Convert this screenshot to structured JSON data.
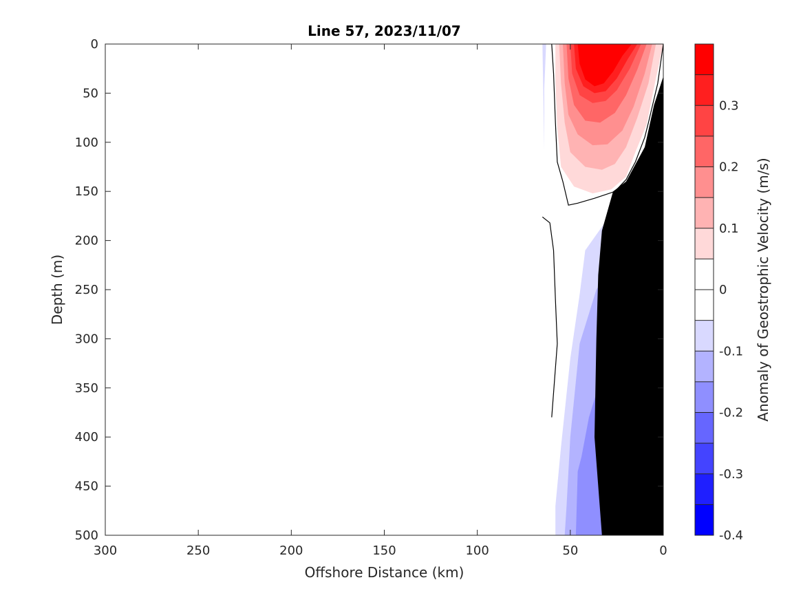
{
  "chart_data": {
    "type": "contour",
    "title": "Line 57, 2023/11/07",
    "xlabel": "Offshore Distance (km)",
    "ylabel": "Depth (m)",
    "xlim": [
      300,
      0
    ],
    "ylim": [
      500,
      0
    ],
    "x_reversed": true,
    "y_reversed": true,
    "x_ticks": [
      300,
      250,
      200,
      150,
      100,
      50,
      0
    ],
    "y_ticks": [
      0,
      50,
      100,
      150,
      200,
      250,
      300,
      350,
      400,
      450,
      500
    ],
    "grid": false,
    "colorbar": {
      "label": "Anomaly of Geostrophic Velocity (m/s)",
      "range": [
        -0.4,
        0.4
      ],
      "ticks": [
        -0.4,
        -0.3,
        -0.2,
        -0.1,
        0,
        0.1,
        0.2,
        0.3
      ],
      "levels": [
        {
          "from": -0.4,
          "to": -0.35,
          "color": "#0000ff"
        },
        {
          "from": -0.35,
          "to": -0.3,
          "color": "#1f1fff"
        },
        {
          "from": -0.3,
          "to": -0.25,
          "color": "#4444ff"
        },
        {
          "from": -0.25,
          "to": -0.2,
          "color": "#6666ff"
        },
        {
          "from": -0.2,
          "to": -0.15,
          "color": "#8f8fff"
        },
        {
          "from": -0.15,
          "to": -0.1,
          "color": "#b3b3ff"
        },
        {
          "from": -0.1,
          "to": -0.05,
          "color": "#d9d9ff"
        },
        {
          "from": -0.05,
          "to": 0.0,
          "color": "#ffffff"
        },
        {
          "from": 0.0,
          "to": 0.05,
          "color": "#ffffff"
        },
        {
          "from": 0.05,
          "to": 0.1,
          "color": "#ffd9d9"
        },
        {
          "from": 0.1,
          "to": 0.15,
          "color": "#ffb3b3"
        },
        {
          "from": 0.15,
          "to": 0.2,
          "color": "#ff8f8f"
        },
        {
          "from": 0.2,
          "to": 0.25,
          "color": "#ff6666"
        },
        {
          "from": 0.25,
          "to": 0.3,
          "color": "#ff4444"
        },
        {
          "from": 0.3,
          "to": 0.35,
          "color": "#ff1f1f"
        },
        {
          "from": 0.35,
          "to": 0.4,
          "color": "#ff0000"
        }
      ]
    },
    "filled_regions": [
      {
        "value": -0.075,
        "color": "#d9d9ff",
        "points": [
          [
            30,
            178
          ],
          [
            12,
            190
          ],
          [
            3,
            250
          ],
          [
            0,
            470
          ],
          [
            0,
            500
          ],
          [
            58,
            500
          ],
          [
            58,
            470
          ],
          [
            55,
            410
          ],
          [
            50,
            320
          ],
          [
            45,
            255
          ],
          [
            42,
            210
          ]
        ]
      },
      {
        "value": -0.125,
        "color": "#b3b3ff",
        "points": [
          [
            28,
            228
          ],
          [
            15,
            245
          ],
          [
            10,
            330
          ],
          [
            3,
            500
          ],
          [
            53,
            500
          ],
          [
            52,
            470
          ],
          [
            50,
            400
          ],
          [
            45,
            305
          ],
          [
            36,
            250
          ]
        ]
      },
      {
        "value": -0.175,
        "color": "#8f8fff",
        "points": [
          [
            34,
            343
          ],
          [
            20,
            380
          ],
          [
            16,
            500
          ],
          [
            47,
            500
          ],
          [
            46,
            435
          ],
          [
            44,
            420
          ],
          [
            40,
            380
          ]
        ]
      },
      {
        "value": 0.075,
        "color": "#ffd9d9",
        "points": [
          [
            58,
            0
          ],
          [
            58,
            40
          ],
          [
            57,
            85
          ],
          [
            55,
            125
          ],
          [
            48,
            145
          ],
          [
            38,
            152
          ],
          [
            28,
            148
          ],
          [
            20,
            135
          ],
          [
            15,
            110
          ],
          [
            9,
            82
          ],
          [
            4,
            35
          ],
          [
            0,
            0
          ]
        ]
      },
      {
        "value": 0.125,
        "color": "#ffb3b3",
        "points": [
          [
            56,
            0
          ],
          [
            55,
            40
          ],
          [
            53,
            80
          ],
          [
            50,
            110
          ],
          [
            42,
            125
          ],
          [
            33,
            128
          ],
          [
            26,
            122
          ],
          [
            20,
            105
          ],
          [
            14,
            75
          ],
          [
            8,
            40
          ],
          [
            4,
            0
          ]
        ]
      },
      {
        "value": 0.175,
        "color": "#ff8f8f",
        "points": [
          [
            54,
            0
          ],
          [
            53,
            40
          ],
          [
            51,
            72
          ],
          [
            46,
            92
          ],
          [
            38,
            103
          ],
          [
            30,
            102
          ],
          [
            22,
            88
          ],
          [
            16,
            64
          ],
          [
            10,
            30
          ],
          [
            6,
            0
          ]
        ]
      },
      {
        "value": 0.225,
        "color": "#ff6666",
        "points": [
          [
            52,
            0
          ],
          [
            51,
            35
          ],
          [
            48,
            62
          ],
          [
            42,
            78
          ],
          [
            34,
            80
          ],
          [
            26,
            70
          ],
          [
            20,
            52
          ],
          [
            14,
            26
          ],
          [
            9,
            0
          ]
        ]
      },
      {
        "value": 0.275,
        "color": "#ff4444",
        "points": [
          [
            50,
            0
          ],
          [
            49,
            30
          ],
          [
            45,
            52
          ],
          [
            38,
            60
          ],
          [
            31,
            58
          ],
          [
            25,
            47
          ],
          [
            18,
            25
          ],
          [
            12,
            0
          ]
        ]
      },
      {
        "value": 0.325,
        "color": "#ff1f1f",
        "points": [
          [
            48,
            0
          ],
          [
            47,
            25
          ],
          [
            43,
            43
          ],
          [
            37,
            50
          ],
          [
            31,
            48
          ],
          [
            25,
            35
          ],
          [
            19,
            15
          ],
          [
            14,
            0
          ]
        ]
      },
      {
        "value": 0.375,
        "color": "#ff0000",
        "points": [
          [
            46,
            0
          ],
          [
            45,
            20
          ],
          [
            42,
            36
          ],
          [
            37,
            43
          ],
          [
            32,
            40
          ],
          [
            27,
            28
          ],
          [
            22,
            12
          ],
          [
            17,
            0
          ]
        ]
      }
    ],
    "zero_contours": [
      [
        [
          60,
          0
        ],
        [
          59,
          30
        ],
        [
          58,
          80
        ],
        [
          57,
          120
        ],
        [
          54,
          140
        ],
        [
          51,
          164
        ],
        [
          46,
          162
        ],
        [
          37,
          157
        ],
        [
          26,
          150
        ],
        [
          20,
          138
        ],
        [
          15,
          120
        ],
        [
          10,
          95
        ],
        [
          8,
          80
        ],
        [
          3,
          40
        ],
        [
          0,
          0
        ]
      ],
      [
        [
          65,
          176
        ],
        [
          61,
          182
        ],
        [
          59,
          210
        ],
        [
          58,
          260
        ],
        [
          57,
          305
        ],
        [
          60,
          380
        ]
      ]
    ],
    "negative_sliver": [
      [
        65,
        0
      ],
      [
        63,
        0
      ],
      [
        64,
        45
      ],
      [
        64,
        108
      ]
    ],
    "bathymetry": [
      [
        0,
        33
      ],
      [
        5,
        62
      ],
      [
        10,
        105
      ],
      [
        20,
        140
      ],
      [
        27,
        150
      ],
      [
        33,
        190
      ],
      [
        35,
        235
      ],
      [
        36,
        300
      ],
      [
        37,
        400
      ],
      [
        33,
        500
      ],
      [
        0,
        500
      ]
    ]
  }
}
